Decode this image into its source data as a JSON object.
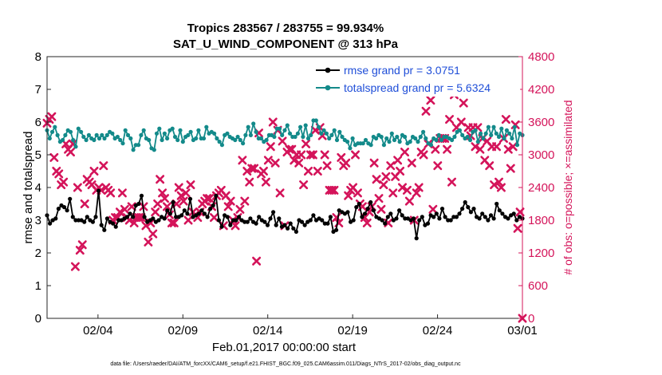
{
  "chart_data": {
    "type": "line",
    "title_line1": "Tropics 283567 / 283755 = 99.934%",
    "title_line2": "SAT_U_WIND_COMPONENT @ 313 hPa",
    "xlabel": "Feb.01,2017 00:00:00 start",
    "ylabel_left": "rmse and totalspread",
    "ylabel_right": "# of obs: o=possible; ×=assimilated",
    "footer": "data file: /Users/raeder/DAI/ATM_forcXX/CAM6_setup/f.e21.FHIST_BGC.f09_025.CAM6assim.011/Diags_NTrS_2017-02/obs_diag_output.nc",
    "xlim": [
      0,
      28
    ],
    "ylim_left": [
      0,
      8
    ],
    "ylim_right": [
      0,
      4800
    ],
    "yticks_left": [
      "0",
      "1",
      "2",
      "3",
      "4",
      "5",
      "6",
      "7",
      "8"
    ],
    "yticks_right": [
      "0",
      "600",
      "1200",
      "1800",
      "2400",
      "3000",
      "3600",
      "4200",
      "4800"
    ],
    "xticks": [
      {
        "label": "02/04",
        "value": 3
      },
      {
        "label": "02/09",
        "value": 8
      },
      {
        "label": "02/14",
        "value": 13
      },
      {
        "label": "02/19",
        "value": 18
      },
      {
        "label": "02/24",
        "value": 23
      },
      {
        "label": "03/01",
        "value": 28
      }
    ],
    "series": [
      {
        "name": "rmse",
        "legend": "rmse grand pr = 3.0751",
        "color": "#000000",
        "axis": "left",
        "values": [
          3.15,
          2.9,
          3.0,
          3.05,
          3.35,
          3.45,
          3.4,
          3.3,
          3.65,
          3.1,
          3.0,
          3.0,
          3.0,
          2.95,
          3.1,
          3.0,
          2.95,
          3.1,
          3.9,
          2.85,
          2.7,
          3.05,
          2.95,
          2.9,
          2.8,
          3.0,
          3.0,
          3.05,
          3.1,
          3.2,
          3.1,
          3.45,
          3.5,
          3.75,
          3.1,
          2.95,
          3.0,
          3.05,
          2.95,
          3.0,
          3.1,
          3.05,
          3.3,
          3.2,
          3.55,
          3.1,
          3.1,
          3.15,
          3.3,
          3.2,
          3.65,
          3.1,
          3.15,
          3.2,
          3.3,
          3.2,
          3.1,
          3.35,
          3.45,
          3.75,
          3.0,
          2.8,
          3.15,
          3.1,
          2.85,
          3.0,
          3.0,
          3.1,
          3.0,
          2.95,
          2.95,
          3.05,
          2.95,
          2.9,
          3.1,
          3.0,
          2.95,
          2.85,
          3.05,
          3.25,
          2.85,
          3.05,
          2.8,
          2.85,
          2.75,
          2.9,
          2.75,
          2.65,
          3.0,
          2.95,
          2.85,
          2.95,
          3.0,
          3.15,
          3.0,
          3.05,
          3.0,
          2.9,
          2.9,
          3.1,
          2.65,
          2.7,
          3.3,
          3.25,
          3.2,
          3.25,
          2.95,
          3.0,
          3.4,
          3.5,
          3.1,
          3.2,
          3.35,
          3.55,
          3.3,
          3.1,
          3.05,
          3.0,
          2.9,
          3.1,
          3.2,
          3.0,
          3.05,
          3.3,
          3.15,
          3.05,
          3.05,
          3.0,
          3.05,
          2.45,
          3.0,
          3.1,
          2.85,
          2.9,
          3.15,
          3.1,
          3.2,
          3.05,
          3.35,
          3.1,
          3.0,
          3.0,
          3.1,
          3.1,
          3.2,
          3.35,
          3.55,
          3.4,
          3.25,
          3.35,
          3.1,
          3.05,
          3.2,
          3.1,
          3.0,
          3.15,
          3.05,
          3.5,
          3.3,
          3.2,
          3.1,
          3.05,
          3.15,
          3.2,
          3.0,
          3.1,
          3.05
        ]
      },
      {
        "name": "totalspread",
        "legend": "totalspread grand pr = 5.6324",
        "color": "#138a8a",
        "axis": "left",
        "values": [
          5.75,
          5.5,
          5.7,
          5.85,
          5.6,
          5.4,
          5.45,
          5.6,
          5.75,
          5.7,
          5.45,
          5.25,
          5.8,
          5.7,
          5.55,
          5.45,
          5.6,
          5.5,
          5.45,
          5.6,
          5.5,
          5.6,
          5.5,
          5.6,
          5.7,
          5.65,
          5.5,
          5.55,
          5.45,
          5.35,
          5.75,
          5.6,
          5.5,
          5.15,
          5.3,
          5.3,
          5.6,
          5.75,
          5.5,
          5.45,
          5.2,
          5.15,
          5.65,
          5.8,
          5.45,
          5.65,
          5.5,
          5.75,
          5.8,
          5.55,
          5.45,
          5.75,
          5.4,
          5.55,
          5.6,
          5.7,
          5.45,
          5.5,
          5.75,
          5.5,
          5.5,
          5.85,
          5.65,
          5.7,
          5.65,
          5.5,
          5.4,
          5.3,
          5.6,
          5.65,
          5.55,
          5.5,
          5.45,
          5.55,
          5.45,
          5.35,
          5.6,
          5.85,
          5.6,
          5.95,
          5.7,
          5.5,
          5.5,
          5.4,
          5.45,
          5.6,
          5.6,
          5.55,
          5.8,
          5.8,
          5.6,
          5.75,
          5.9,
          5.65,
          5.55,
          5.55,
          5.65,
          5.85,
          5.55,
          5.9,
          5.5,
          5.6,
          6.05,
          6.05,
          5.85,
          5.65,
          5.75,
          5.65,
          5.5,
          5.6,
          5.75,
          5.45,
          5.7,
          5.55,
          5.45,
          5.4,
          5.2,
          5.5,
          5.3,
          5.35,
          5.35,
          5.35,
          5.45,
          5.35,
          5.3,
          5.55,
          5.5,
          5.6,
          5.55,
          5.3,
          5.5,
          5.4,
          5.65,
          5.45,
          5.55,
          5.4,
          5.6,
          5.55,
          5.35,
          5.4,
          5.55,
          5.5,
          5.4,
          5.55,
          5.7,
          5.5,
          5.35,
          5.3,
          5.5,
          5.45,
          5.6,
          5.45,
          5.55,
          5.55,
          5.5,
          5.45,
          5.55,
          5.7,
          5.75,
          5.6,
          5.5,
          5.55,
          5.45,
          5.7,
          5.75,
          5.4,
          5.65,
          5.5,
          5.65,
          5.85,
          5.6,
          5.85,
          5.65,
          5.55,
          5.8,
          5.5,
          5.75,
          5.65,
          5.5,
          5.85,
          5.3,
          5.65,
          5.6
        ]
      },
      {
        "name": "nobs_assimilated",
        "color": "#d4145a",
        "axis": "right",
        "marker": "x",
        "values": [
          3580,
          3650,
          3700,
          2950,
          2700,
          2650,
          2450,
          2500,
          3200,
          3100,
          3050,
          3200,
          950,
          2400,
          1250,
          1350,
          2100,
          2550,
          2500,
          2450,
          2700,
          2350,
          2400,
          2350,
          2800,
          2400,
          2350,
          2300,
          1800,
          1850,
          1850,
          1950,
          2300,
          2000,
          1850,
          1800,
          2050,
          1750,
          1850,
          1850,
          1850,
          2050,
          1700,
          1400,
          1750,
          1550,
          1950,
          2100,
          2550,
          2300,
          2200,
          2050,
          1900,
          1750,
          1750,
          2100,
          2400,
          2250,
          2150,
          2300,
          1800,
          2450,
          1950,
          1900,
          1850,
          1950,
          2100,
          2150,
          2200,
          2200,
          2050,
          1850,
          2250,
          2300,
          2350,
          1700,
          2250,
          2050,
          2150,
          1800,
          1700,
          1850,
          2000,
          2900,
          2150,
          2700,
          2500,
          2750,
          2750,
          1050,
          3400,
          2650,
          2700,
          2500,
          2900,
          3150,
          3600,
          2850,
          3450,
          2300,
          3250,
          1700,
          3050,
          3100,
          3100,
          2900,
          3000,
          2850,
          3000,
          2450,
          3200,
          2700,
          3000,
          3000,
          3450,
          2700,
          3500,
          3350,
          3000,
          2800,
          2350,
          2350,
          2350,
          1850,
          1750,
          2950,
          2800,
          2850,
          2250,
          2350,
          2400,
          3000,
          2300,
          2100,
          2050,
          1850,
          1750,
          1950,
          2050,
          2850,
          2550,
          2200,
          2000,
          2450,
          2600,
          1750,
          2800,
          2300,
          2600,
          2900,
          2700,
          2400,
          3050,
          2350,
          2150,
          2850,
          1800,
          2300,
          2400,
          3050,
          3000,
          3800,
          3200,
          4000,
          2000,
          3100,
          2800,
          3300,
          3300,
          3300,
          3100,
          3650,
          2500,
          4100,
          3500,
          4250,
          3600,
          3950,
          4350,
          3500,
          3350,
          3500,
          3150,
          3500,
          3100,
          3300,
          2900,
          3250,
          2800,
          3150,
          2450,
          3150,
          2500,
          2400,
          3300,
          3650,
          3100,
          2750,
          3150,
          3550,
          1650,
          1950,
          0
        ]
      }
    ]
  }
}
